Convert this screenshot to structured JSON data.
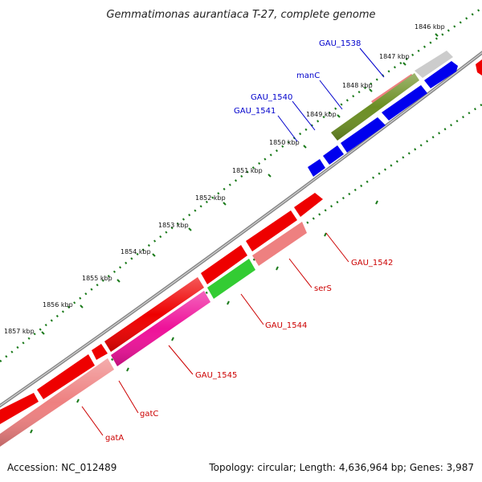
{
  "title": "Gemmatimonas aurantiaca T-27, complete genome",
  "footer": {
    "accession": "Accession: NC_012489",
    "summary": "Topology: circular; Length: 4,636,964 bp; Genes: 3,987"
  },
  "scale_labels": [
    "1846 kbp",
    "1847 kbp",
    "1848 kbp",
    "1849 kbp",
    "1850 kbp",
    "1851 kbp",
    "1852 kbp",
    "1853 kbp",
    "1854 kbp",
    "1855 kbp",
    "1856 kbp",
    "1857 kbp"
  ],
  "gene_labels_upper": [
    {
      "name": "gau-1538-label",
      "text": "GAU_1538"
    },
    {
      "name": "manc-label",
      "text": "manC"
    },
    {
      "name": "gau-1540-label",
      "text": "GAU_1540"
    },
    {
      "name": "gau-1541-label",
      "text": "GAU_1541"
    }
  ],
  "gene_labels_lower": [
    {
      "name": "gau-1542-label",
      "text": "GAU_1542"
    },
    {
      "name": "sers-label",
      "text": "serS"
    },
    {
      "name": "gau-1544-label",
      "text": "GAU_1544"
    },
    {
      "name": "gau-1545-label",
      "text": "GAU_1545"
    },
    {
      "name": "gatc-label",
      "text": "gatC"
    },
    {
      "name": "gata-label",
      "text": "gatA"
    }
  ],
  "colors": {
    "forward_label": "#0000cc",
    "reverse_label": "#cc0000",
    "cds_blue": "#0000ee",
    "cds_red": "#ee0000",
    "cds_salmon": "#ee8080",
    "cds_olive": "#6b8e23",
    "cds_green": "#33cc33",
    "cds_magenta": "#ee1199",
    "cds_gray": "#cccccc",
    "backbone": "#888888",
    "scale_dots": "#1a7a1a"
  }
}
